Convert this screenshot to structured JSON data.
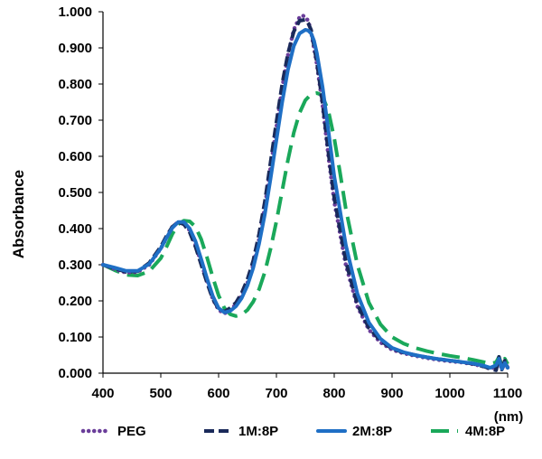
{
  "chart_data": {
    "type": "line",
    "title": "",
    "xlabel": "",
    "x_unit": "(nm)",
    "ylabel": "Absorbance",
    "xlim": [
      400,
      1100
    ],
    "ylim": [
      0,
      1.0
    ],
    "x_ticks": [
      "400",
      "500",
      "600",
      "700",
      "800",
      "900",
      "1000",
      "1100"
    ],
    "y_ticks": [
      "0.000",
      "0.100",
      "0.200",
      "0.300",
      "0.400",
      "0.500",
      "0.600",
      "0.700",
      "0.800",
      "0.900",
      "1.000"
    ],
    "grid": false,
    "legend": "bottom",
    "series": [
      {
        "name": "PEG",
        "color": "#6a3d9a",
        "style": "dotted",
        "x": [
          400,
          420,
          440,
          460,
          480,
          500,
          510,
          520,
          530,
          540,
          550,
          560,
          570,
          580,
          590,
          600,
          610,
          620,
          630,
          640,
          650,
          660,
          670,
          680,
          690,
          700,
          710,
          720,
          730,
          740,
          745,
          750,
          755,
          760,
          770,
          780,
          790,
          800,
          820,
          840,
          860,
          880,
          900,
          920,
          940,
          960,
          980,
          1000,
          1020,
          1040,
          1060,
          1070,
          1080,
          1085,
          1090,
          1095,
          1100
        ],
        "y": [
          0.3,
          0.288,
          0.278,
          0.28,
          0.3,
          0.345,
          0.375,
          0.405,
          0.418,
          0.415,
          0.395,
          0.355,
          0.305,
          0.255,
          0.205,
          0.175,
          0.165,
          0.175,
          0.19,
          0.215,
          0.25,
          0.3,
          0.37,
          0.46,
          0.57,
          0.68,
          0.79,
          0.88,
          0.95,
          0.985,
          0.99,
          0.985,
          0.975,
          0.945,
          0.855,
          0.74,
          0.6,
          0.475,
          0.3,
          0.185,
          0.12,
          0.085,
          0.065,
          0.055,
          0.048,
          0.042,
          0.037,
          0.033,
          0.03,
          0.025,
          0.018,
          0.012,
          0.018,
          0.035,
          0.01,
          0.03,
          0.015
        ]
      },
      {
        "name": "1M:8P",
        "color": "#1a2a5a",
        "style": "dashed",
        "x": [
          400,
          420,
          440,
          460,
          480,
          500,
          510,
          520,
          530,
          540,
          550,
          560,
          570,
          580,
          590,
          600,
          610,
          620,
          630,
          640,
          650,
          660,
          670,
          680,
          690,
          700,
          710,
          720,
          730,
          740,
          750,
          755,
          760,
          770,
          780,
          790,
          800,
          820,
          840,
          860,
          880,
          900,
          920,
          940,
          960,
          980,
          1000,
          1020,
          1040,
          1060,
          1070,
          1080,
          1085,
          1090,
          1095,
          1100
        ],
        "y": [
          0.3,
          0.29,
          0.28,
          0.282,
          0.305,
          0.35,
          0.38,
          0.405,
          0.418,
          0.412,
          0.39,
          0.35,
          0.3,
          0.25,
          0.205,
          0.178,
          0.17,
          0.18,
          0.195,
          0.222,
          0.26,
          0.312,
          0.385,
          0.475,
          0.585,
          0.695,
          0.8,
          0.885,
          0.945,
          0.975,
          0.978,
          0.968,
          0.95,
          0.86,
          0.745,
          0.61,
          0.485,
          0.31,
          0.19,
          0.125,
          0.09,
          0.068,
          0.057,
          0.05,
          0.044,
          0.039,
          0.035,
          0.031,
          0.026,
          0.018,
          0.012,
          0.008,
          0.045,
          0.01,
          0.035,
          0.015
        ]
      },
      {
        "name": "2M:8P",
        "color": "#1f6fc5",
        "style": "solid",
        "x": [
          400,
          420,
          440,
          460,
          480,
          500,
          510,
          520,
          530,
          540,
          550,
          560,
          570,
          580,
          590,
          600,
          610,
          620,
          630,
          640,
          650,
          660,
          670,
          680,
          690,
          700,
          710,
          720,
          730,
          740,
          750,
          755,
          760,
          765,
          770,
          780,
          790,
          800,
          820,
          840,
          860,
          880,
          900,
          920,
          940,
          960,
          980,
          1000,
          1020,
          1040,
          1060,
          1070,
          1080,
          1085,
          1090,
          1095,
          1100
        ],
        "y": [
          0.3,
          0.292,
          0.283,
          0.283,
          0.302,
          0.345,
          0.375,
          0.402,
          0.418,
          0.418,
          0.4,
          0.365,
          0.315,
          0.262,
          0.213,
          0.18,
          0.168,
          0.172,
          0.185,
          0.208,
          0.243,
          0.292,
          0.358,
          0.44,
          0.54,
          0.645,
          0.75,
          0.84,
          0.905,
          0.94,
          0.95,
          0.948,
          0.94,
          0.92,
          0.885,
          0.79,
          0.67,
          0.545,
          0.355,
          0.22,
          0.14,
          0.095,
          0.07,
          0.058,
          0.05,
          0.044,
          0.039,
          0.035,
          0.031,
          0.027,
          0.02,
          0.015,
          0.022,
          0.04,
          0.012,
          0.028,
          0.015
        ]
      },
      {
        "name": "4M:8P",
        "color": "#1aa85a",
        "style": "longdash",
        "x": [
          400,
          420,
          440,
          460,
          480,
          500,
          510,
          520,
          530,
          540,
          550,
          560,
          570,
          580,
          590,
          600,
          610,
          620,
          630,
          640,
          650,
          660,
          670,
          680,
          690,
          700,
          710,
          720,
          730,
          740,
          750,
          760,
          770,
          775,
          780,
          790,
          800,
          810,
          820,
          840,
          860,
          880,
          900,
          920,
          940,
          960,
          980,
          1000,
          1020,
          1040,
          1060,
          1070,
          1080,
          1085,
          1090,
          1095,
          1100
        ],
        "y": [
          0.3,
          0.285,
          0.272,
          0.27,
          0.282,
          0.318,
          0.35,
          0.385,
          0.412,
          0.422,
          0.42,
          0.405,
          0.37,
          0.32,
          0.265,
          0.215,
          0.18,
          0.163,
          0.158,
          0.162,
          0.175,
          0.198,
          0.232,
          0.28,
          0.345,
          0.42,
          0.505,
          0.59,
          0.665,
          0.72,
          0.755,
          0.772,
          0.775,
          0.772,
          0.765,
          0.725,
          0.65,
          0.555,
          0.455,
          0.3,
          0.195,
          0.135,
          0.1,
          0.082,
          0.07,
          0.061,
          0.054,
          0.048,
          0.043,
          0.037,
          0.03,
          0.026,
          0.03,
          0.045,
          0.02,
          0.04,
          0.025
        ]
      }
    ]
  }
}
